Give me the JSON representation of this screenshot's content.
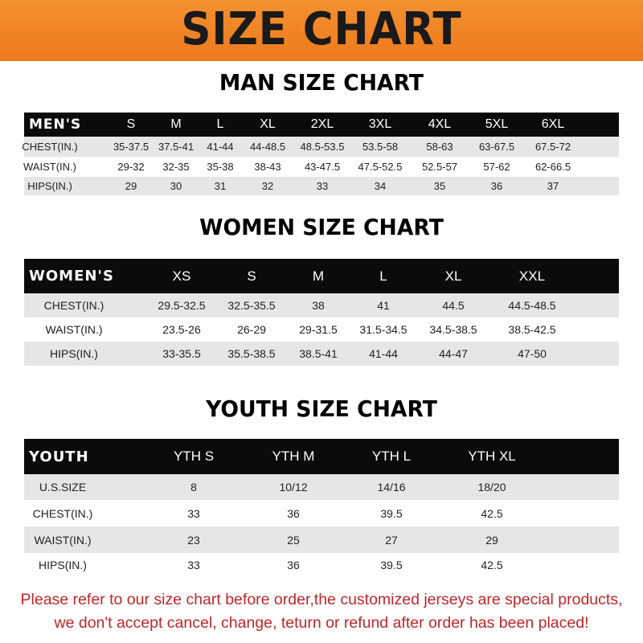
{
  "banner": {
    "title": "SIZE CHART",
    "color": "#F07F20"
  },
  "men": {
    "title": "MAN SIZE CHART",
    "header": [
      "MEN'S",
      "S",
      "M",
      "L",
      "XL",
      "2XL",
      "3XL",
      "4XL",
      "5XL",
      "6XL"
    ],
    "rows": [
      [
        "CHEST(IN.)",
        "35-37.5",
        "37.5-41",
        "41-44",
        "44-48.5",
        "48.5-53.5",
        "53.5-58",
        "58-63",
        "63-67.5",
        "67.5-72"
      ],
      [
        "WAIST(IN.)",
        "29-32",
        "32-35",
        "35-38",
        "38-43",
        "43-47.5",
        "47.5-52.5",
        "52.5-57",
        "57-62",
        "62-66.5"
      ],
      [
        "HIPS(IN.)",
        "29",
        "30",
        "31",
        "32",
        "33",
        "34",
        "35",
        "36",
        "37"
      ]
    ]
  },
  "women": {
    "title": "WOMEN SIZE CHART",
    "header": [
      "WOMEN'S",
      "XS",
      "S",
      "M",
      "L",
      "XL",
      "XXL"
    ],
    "rows": [
      [
        "CHEST(IN.)",
        "29.5-32.5",
        "32.5-35.5",
        "38",
        "41",
        "44.5",
        "44.5-48.5"
      ],
      [
        "WAIST(IN.)",
        "23.5-26",
        "26-29",
        "29-31.5",
        "31.5-34.5",
        "34.5-38.5",
        "38.5-42.5"
      ],
      [
        "HIPS(IN.)",
        "33-35.5",
        "35.5-38.5",
        "38.5-41",
        "41-44",
        "44-47",
        "47-50"
      ]
    ]
  },
  "youth": {
    "title": "YOUTH SIZE CHART",
    "header": [
      "YOUTH",
      "YTH S",
      "YTH M",
      "YTH L",
      "YTH XL"
    ],
    "rows": [
      [
        "U.S.SIZE",
        "8",
        "10/12",
        "14/16",
        "18/20"
      ],
      [
        "CHEST(IN.)",
        "33",
        "36",
        "39.5",
        "42.5"
      ],
      [
        "WAIST(IN.)",
        "23",
        "25",
        "27",
        "29"
      ],
      [
        "HIPS(IN.)",
        "33",
        "36",
        "39.5",
        "42.5"
      ]
    ]
  },
  "footer": {
    "line1": "Please refer to our size chart before order,the customized jerseys are special products,",
    "line2": "we don't accept cancel, change, teturn or refund after order has been placed!",
    "color": "#C0262B"
  }
}
